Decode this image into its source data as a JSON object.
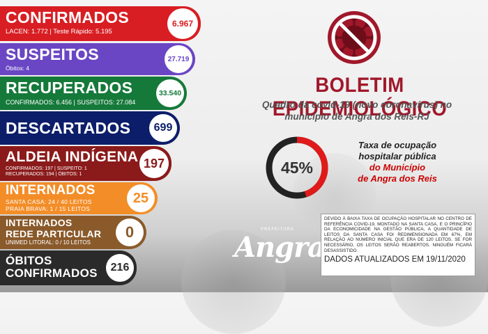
{
  "colors": {
    "confirmados": "#d81e23",
    "suspeitos": "#6a46c4",
    "recuperados": "#15793a",
    "descartados": "#0c1e6a",
    "aldeia": "#8b1a1a",
    "internados": "#f38d27",
    "rede_particular": "#8a5a2b",
    "obitos": "#2a2a2a",
    "header": "#a0182a",
    "gauge_red": "#e01a1a"
  },
  "confirmados": {
    "title": "CONFIRMADOS",
    "sub": "LACEN: 1.772  |  Teste Rápido: 5.195",
    "value": "6.967"
  },
  "suspeitos": {
    "title": "SUSPEITOS",
    "sub": "Óbitos: 4",
    "value": "27.719"
  },
  "recuperados": {
    "title": "RECUPERADOS",
    "sub": "CONFIRMADOS: 6.456  |  SUSPEITOS: 27.084",
    "value": "33.540"
  },
  "descartados": {
    "title": "DESCARTADOS",
    "value": "699"
  },
  "aldeia": {
    "title": "ALDEIA INDÍGENA",
    "sub1": "CONFIRMADOS: 197 | SUSPEITO: 1",
    "sub2": "RECUPERADOS: 194  |  ÓBITOS: 1",
    "value": "197"
  },
  "internados": {
    "title": "INTERNADOS",
    "sub1": "SANTA CASA: 24 / 40 LEITOS",
    "sub2": "PRAIA BRAVA: 1 / 15 LEITOS",
    "value": "25"
  },
  "rede_particular": {
    "title1": "INTERNADOS",
    "title2": "REDE PARTICULAR",
    "sub": "UNIMED LITORAL: 0 / 10 LEITOS",
    "value": "0"
  },
  "obitos": {
    "title1": "ÓBITOS",
    "title2": "CONFIRMADOS",
    "value": "216"
  },
  "header": {
    "icon": "no-virus-icon",
    "title": "BOLETIM EPIDEMIOLÓGICO",
    "subtitle": "Quadro da covid-19 (novo coronavírus) no município de Angra dos Reis-RJ"
  },
  "occupancy": {
    "value": 0.45,
    "label": "45%",
    "text_line1": "Taxa de ocupação",
    "text_line2": "hospitalar pública",
    "text_red1": "do Município",
    "text_red2": "de Angra dos Reis"
  },
  "notice": {
    "text": "DEVIDO À BAIXA TAXA DE OCUPAÇÃO HOSPITALAR NO CENTRO DE REFERÊNCIA COVID-19, MONTADO NA SANTA CASA, E O PRINCÍPIO DA ECONOMICIDADE NA GESTÃO PÚBLICA, A QUANTIDADE DE LEITOS DA SANTA CASA FOI REDIMENSIONADA EM 67%, EM RELAÇÃO AO NÚMERO INICIAL QUE ERA DE 120 LEITOS. SE FOR NECESSÁRIO, OS LEITOS SERÃO REABERTOS. NINGUÉM FICARÁ DESASSISTIDO.",
    "date": "DADOS ATUALIZADOS EM 19/11/2020"
  },
  "logo": {
    "small": "PREFEITURA",
    "big": "Angra"
  }
}
